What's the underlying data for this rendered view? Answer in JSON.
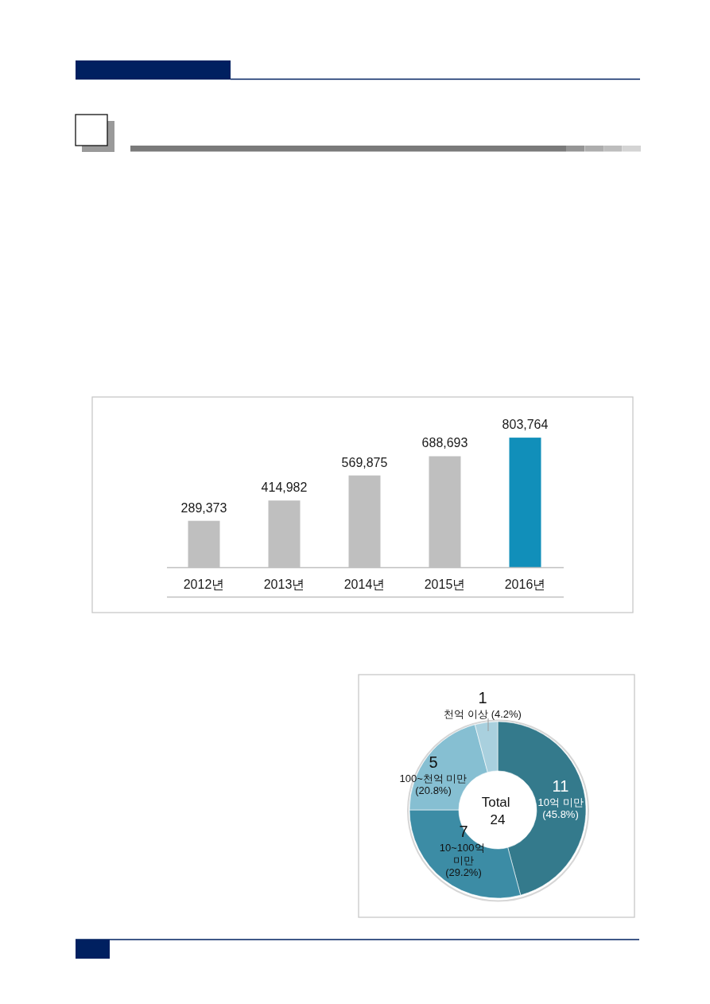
{
  "chart_data": [
    {
      "type": "bar",
      "categories": [
        "2012년",
        "2013년",
        "2014년",
        "2015년",
        "2016년"
      ],
      "values": [
        289373,
        414982,
        569875,
        688693,
        803764
      ],
      "colors": [
        "#bfbfbf",
        "#bfbfbf",
        "#bfbfbf",
        "#bfbfbf",
        "#118fba"
      ],
      "value_labels": [
        "289,373",
        "414,982",
        "569,875",
        "688,693",
        "803,764"
      ]
    },
    {
      "type": "donut",
      "categories": [
        "10억 미만",
        "10~100억 미만",
        "100~천억 미만",
        "천억 이상"
      ],
      "values": [
        11,
        7,
        5,
        1
      ],
      "colors": [
        "#347a8c",
        "#3c8ca5",
        "#86bfd2",
        "#a9d0de"
      ],
      "data_labels": true,
      "annotations": [
        "(45.8%)",
        "(29.2%)",
        "(20.8%)",
        "(4.2%)",
        "Total 24"
      ]
    }
  ]
}
